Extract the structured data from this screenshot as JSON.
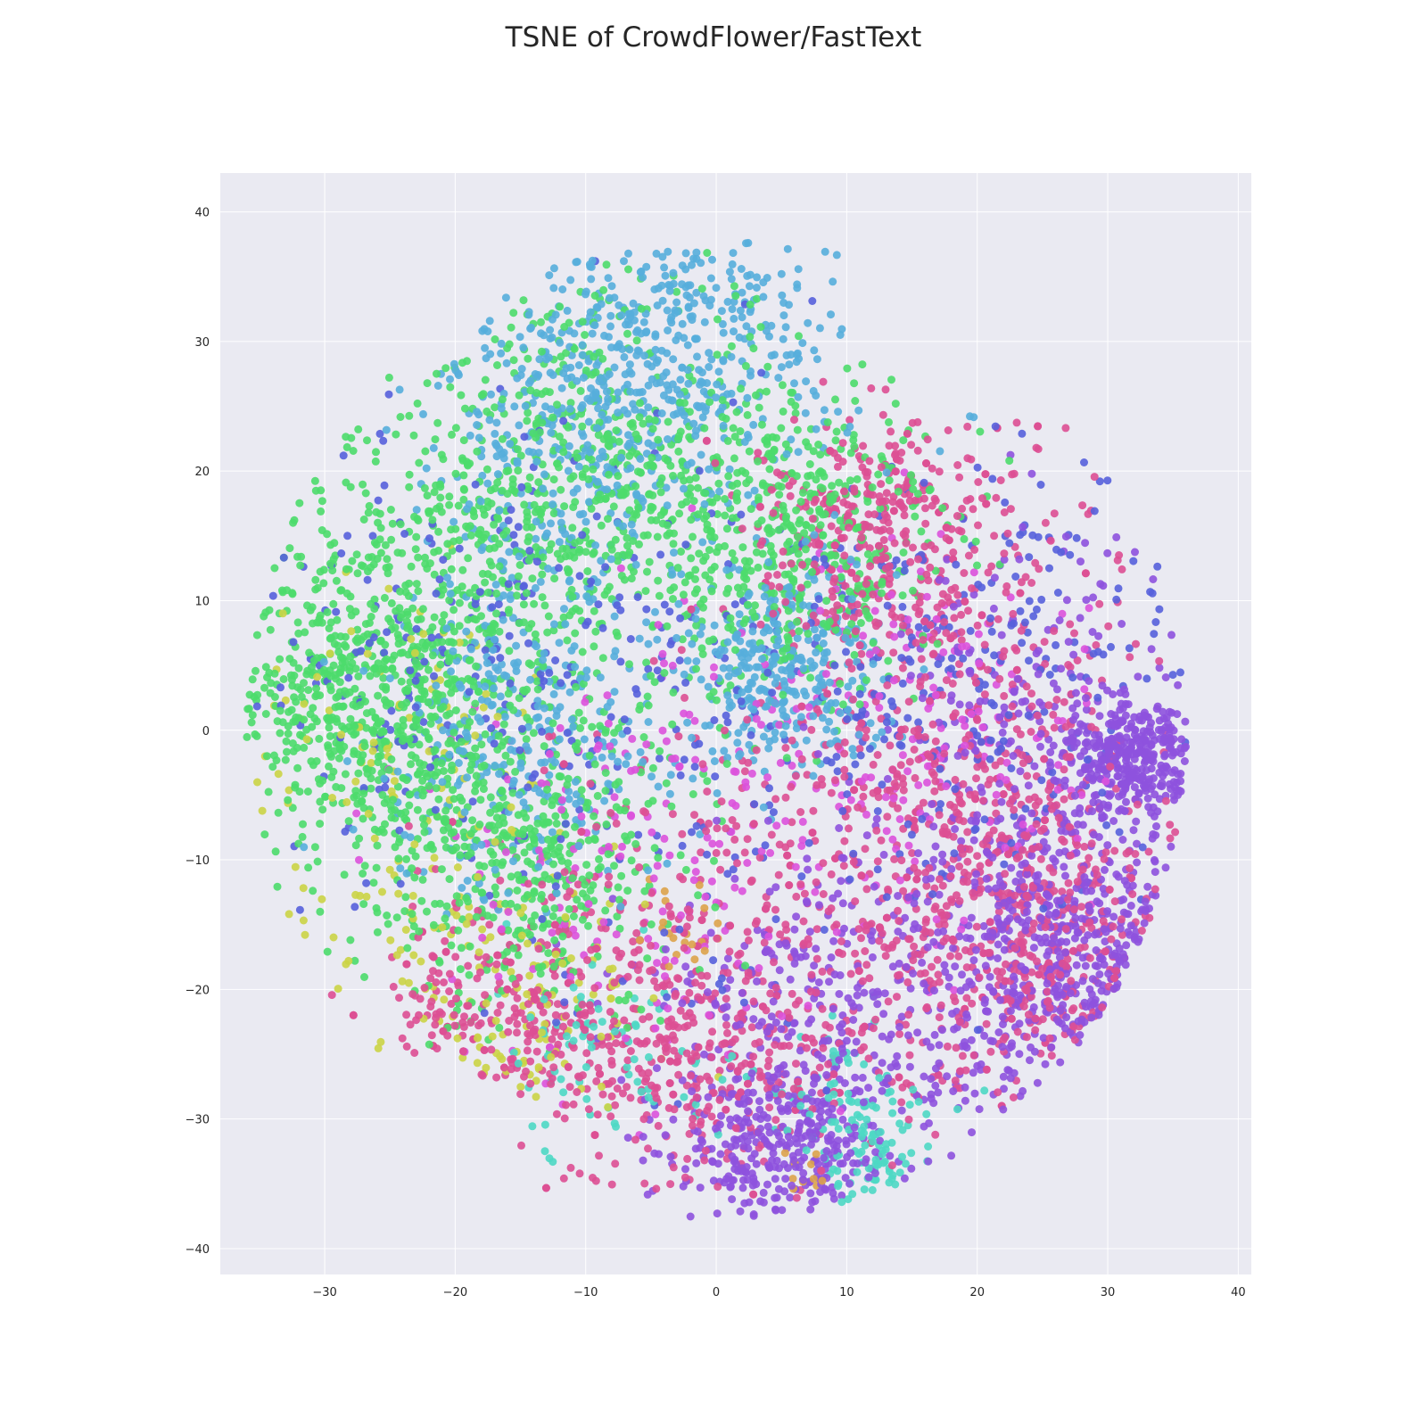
{
  "chart_data": {
    "type": "scatter",
    "title": "TSNE of CrowdFlower/FastText",
    "xlabel": "",
    "ylabel": "",
    "xlim": [
      -38,
      41
    ],
    "ylim": [
      -42,
      43
    ],
    "xticks": [
      -30,
      -20,
      -10,
      0,
      10,
      20,
      30,
      40
    ],
    "yticks": [
      40,
      30,
      20,
      10,
      0,
      -10,
      -20,
      -30,
      -40
    ],
    "xtick_labels": [
      "−30",
      "−20",
      "−10",
      "0",
      "10",
      "20",
      "30",
      "40"
    ],
    "ytick_labels": [
      "40",
      "30",
      "20",
      "10",
      "0",
      "−10",
      "−20",
      "−30",
      "−40"
    ],
    "grid": true,
    "legend": "none",
    "background": "#eaeaf2",
    "marker_alpha": 0.9,
    "series": [
      {
        "color": "#4ddc6c",
        "centers": [
          [
            -20,
            10,
            9,
            8
          ],
          [
            -27,
            2,
            5,
            6
          ],
          [
            -10,
            20,
            7,
            8
          ],
          [
            -15,
            -10,
            6,
            6
          ],
          [
            5,
            15,
            6,
            6
          ]
        ],
        "weight": 4
      },
      {
        "color": "#56aedc",
        "centers": [
          [
            -2,
            30,
            8,
            5
          ],
          [
            -10,
            22,
            6,
            6
          ],
          [
            -15,
            0,
            5,
            6
          ],
          [
            5,
            5,
            4,
            4
          ]
        ],
        "weight": 2.2
      },
      {
        "color": "#dd4f94",
        "centers": [
          [
            10,
            -10,
            10,
            8
          ],
          [
            22,
            0,
            6,
            10
          ],
          [
            25,
            -18,
            6,
            6
          ],
          [
            -15,
            -22,
            6,
            6
          ],
          [
            0,
            -25,
            6,
            5
          ],
          [
            12,
            15,
            5,
            5
          ]
        ],
        "weight": 3.6
      },
      {
        "color": "#8e52de",
        "centers": [
          [
            25,
            -5,
            7,
            10
          ],
          [
            28,
            -18,
            5,
            6
          ],
          [
            10,
            -22,
            8,
            6
          ],
          [
            5,
            -32,
            4,
            3
          ],
          [
            32,
            -2,
            3,
            2
          ]
        ],
        "weight": 2.8
      },
      {
        "color": "#5660dc",
        "centers": [
          [
            0,
            0,
            12,
            12
          ],
          [
            -20,
            5,
            8,
            8
          ],
          [
            20,
            5,
            8,
            8
          ]
        ],
        "weight": 1.0
      },
      {
        "color": "#cbd446",
        "centers": [
          [
            -25,
            -5,
            6,
            8
          ],
          [
            -15,
            -20,
            5,
            5
          ]
        ],
        "weight": 0.4
      },
      {
        "color": "#4ed8c4",
        "centers": [
          [
            12,
            -33,
            2,
            3
          ],
          [
            8,
            -28,
            4,
            3
          ],
          [
            -10,
            -25,
            4,
            4
          ]
        ],
        "weight": 0.35
      },
      {
        "color": "#dc52dc",
        "centers": [
          [
            -5,
            -10,
            8,
            8
          ],
          [
            15,
            0,
            8,
            8
          ]
        ],
        "weight": 0.6
      },
      {
        "color": "#dda34a",
        "centers": [
          [
            7,
            -34,
            1,
            1
          ],
          [
            -3,
            -15,
            2,
            2
          ]
        ],
        "weight": 0.05
      }
    ]
  }
}
